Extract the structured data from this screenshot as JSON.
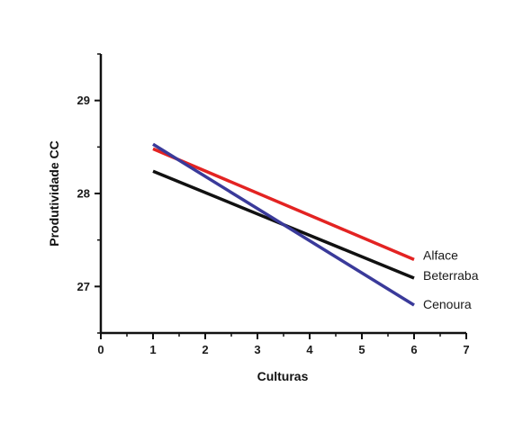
{
  "chart_data": {
    "type": "line",
    "xlabel": "Culturas",
    "ylabel": "Produtividade CC",
    "xlim": [
      0,
      7
    ],
    "ylim": [
      26.5,
      29.5
    ],
    "xticks": [
      "0",
      "1",
      "2",
      "3",
      "4",
      "5",
      "6",
      "7"
    ],
    "yticks": [
      "27",
      "28",
      "29"
    ],
    "grid": false,
    "legend_placement": "inline at line ends",
    "series": [
      {
        "name": "Alface",
        "color": "#e32322",
        "x": [
          1,
          6
        ],
        "y": [
          28.48,
          27.29
        ]
      },
      {
        "name": "Beterraba",
        "color": "#111111",
        "x": [
          1,
          6
        ],
        "y": [
          28.24,
          27.09
        ]
      },
      {
        "name": "Cenoura",
        "color": "#3a3a9a",
        "x": [
          1,
          6
        ],
        "y": [
          28.53,
          26.8
        ]
      }
    ]
  }
}
